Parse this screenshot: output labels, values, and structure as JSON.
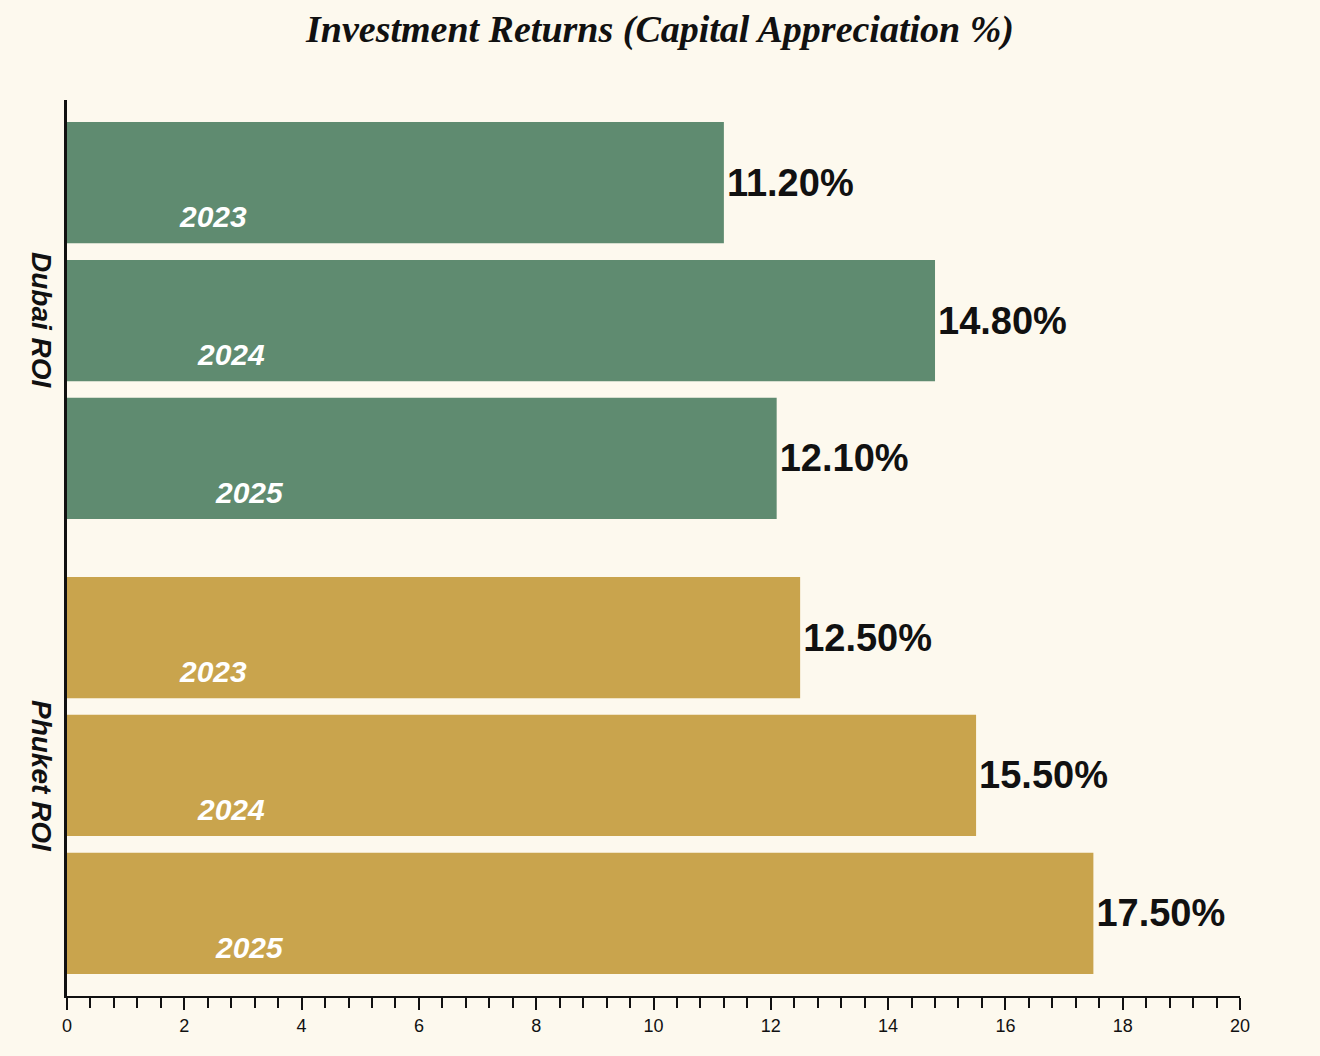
{
  "chart_data": {
    "type": "bar",
    "title": "Investment Returns (Capital Appreciation %)",
    "orientation": "horizontal",
    "data_labels": true,
    "tick_labels": "x",
    "grid": false,
    "xlim": [
      0,
      20
    ],
    "xticks": [
      0,
      2,
      4,
      6,
      8,
      10,
      12,
      14,
      16,
      18,
      20
    ],
    "series": [
      {
        "name": "Dubai ROI",
        "color": "#5f8b70",
        "categories": [
          "2023",
          "2024",
          "2025"
        ],
        "values": [
          11.2,
          14.8,
          12.1
        ],
        "value_labels": [
          "11.20%",
          "14.80%",
          "12.10%"
        ]
      },
      {
        "name": "Phuket ROI",
        "color": "#c9a44d",
        "categories": [
          "2023",
          "2024",
          "2025"
        ],
        "values": [
          12.5,
          15.5,
          17.5
        ],
        "value_labels": [
          "12.50%",
          "15.50%",
          "17.50%"
        ]
      }
    ]
  }
}
